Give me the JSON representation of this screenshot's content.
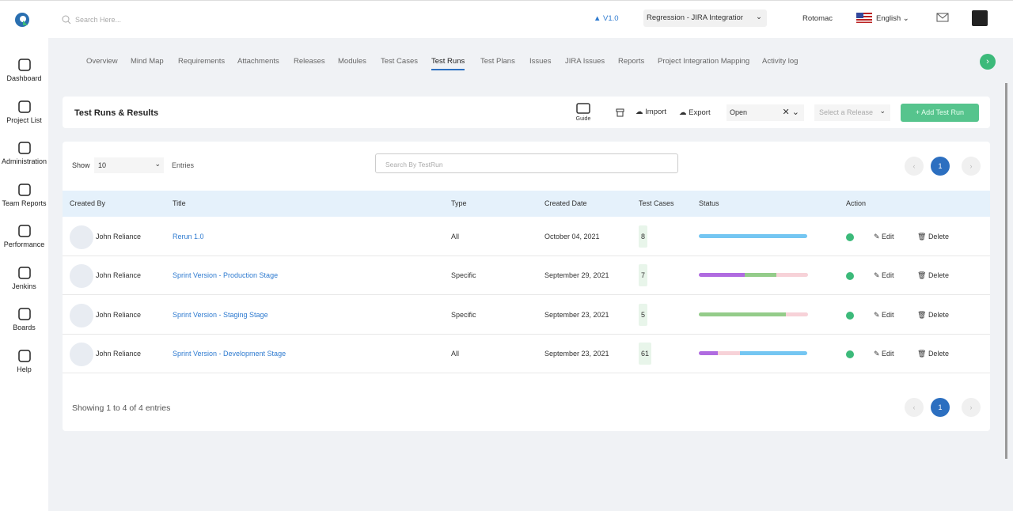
{
  "topbar": {
    "search_placeholder": "Search Here...",
    "version": "V1.0",
    "project": "Regression - JIRA Integratior",
    "user": "Rotomac",
    "language": "English"
  },
  "sidebar": {
    "items": [
      "Dashboard",
      "Project List",
      "Administration",
      "Team Reports",
      "Performance",
      "Jenkins",
      "Boards",
      "Help"
    ]
  },
  "tabs": [
    "Overview",
    "Mind Map",
    "Requirements",
    "Attachments",
    "Releases",
    "Modules",
    "Test Cases",
    "Test Runs",
    "Test Plans",
    "Issues",
    "JIRA Issues",
    "Reports",
    "Project Integration Mapping",
    "Activity log"
  ],
  "toolbar": {
    "title": "Test Runs & Results",
    "guide": "Guide",
    "import": "Import",
    "export": "Export",
    "status_filter": "Open",
    "release_placeholder": "Select a Release",
    "add_button": "+ Add Test Run"
  },
  "table_controls": {
    "show": "Show",
    "entries_count": "10",
    "entries": "Entries",
    "search_placeholder": "Search By TestRun",
    "page": "1"
  },
  "table": {
    "columns": [
      "Created By",
      "Title",
      "Type",
      "Created Date",
      "Test Cases",
      "Status",
      "Action"
    ],
    "actions": [
      "Edit",
      "Delete"
    ],
    "rows": [
      [
        "John Reliance",
        "Rerun 1.0",
        "All",
        "October 04, 2021",
        8
      ],
      [
        "John Reliance",
        "Sprint Version - Production Stage",
        "Specific",
        "September 29, 2021",
        7
      ],
      [
        "John Reliance",
        "Sprint Version - Staging Stage",
        "Specific",
        "September 23, 2021",
        5
      ],
      [
        "John Reliance",
        "Sprint Version - Development Stage",
        "All",
        "September 23, 2021",
        61
      ]
    ]
  },
  "footer": {
    "summary": "Showing 1 to 4 of 4 entries",
    "page": "1"
  }
}
